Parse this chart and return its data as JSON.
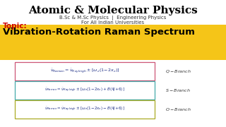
{
  "title": "Atomic & Molecular Physics",
  "subtitle1": "B.Sc & M.Sc Physics  |  Engineering Physics",
  "subtitle2": "For All Indian Universities",
  "topic_label": "Topic:",
  "topic_title": "Vibration-Rotation Raman Spectrum",
  "bg_color": "#ffffff",
  "title_color": "#000000",
  "subtitle_color": "#333333",
  "topic_color": "#cc0000",
  "topic_bg": "#F5C518",
  "formula1": "$\\tilde{\\nu}_{Raman} = \\tilde{\\nu}_{Rayleigh} \\pm [\\omega_e(1-2x_e)]$",
  "label1": "$Q-Branch$",
  "box1_edge": "#cc5577",
  "formula2": "$\\tilde{\\nu}_{Raman} = \\tilde{\\nu}_{Rayleigh} \\pm [\\omega_e(1-2x_e) + B(4J+6)]$",
  "label2": "$S-Branch$",
  "box2_edge": "#44aaaa",
  "formula3": "$\\tilde{\\nu}_{Raman} = \\tilde{\\nu}_{Rayleigh} \\pm [\\omega_e(1-2x_e) - B(4J+6)]$",
  "label3": "$O-Branch$",
  "box3_edge": "#aaaa22",
  "formula_color": "#223388"
}
